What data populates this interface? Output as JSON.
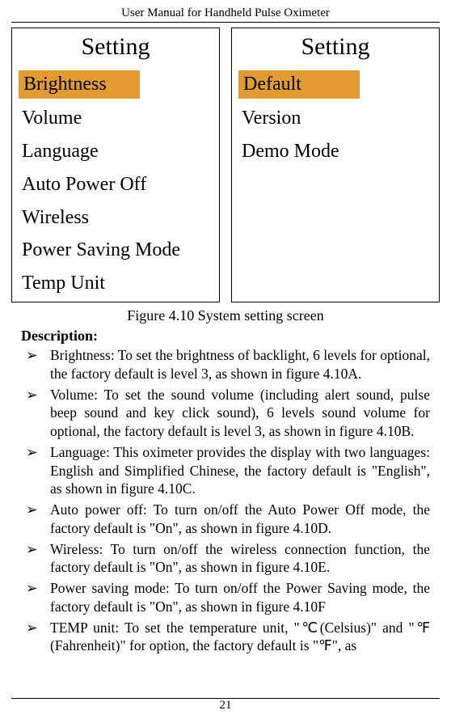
{
  "header": "User Manual for Handheld Pulse Oximeter",
  "panels": {
    "left": {
      "title": "Setting",
      "items": [
        {
          "label": "Brightness",
          "highlight": true
        },
        {
          "label": "Volume",
          "highlight": false
        },
        {
          "label": "Language",
          "highlight": false
        },
        {
          "label": "Auto Power Off",
          "highlight": false
        },
        {
          "label": "Wireless",
          "highlight": false
        },
        {
          "label": "Power Saving Mode",
          "highlight": false
        },
        {
          "label": "Temp Unit",
          "highlight": false
        }
      ]
    },
    "right": {
      "title": "Setting",
      "items": [
        {
          "label": "Default",
          "highlight": true
        },
        {
          "label": "Version",
          "highlight": false
        },
        {
          "label": "Demo Mode",
          "highlight": false
        }
      ]
    }
  },
  "figcap": "Figure 4.10 System setting screen",
  "desc_title": "Description:",
  "bullets": [
    "Brightness: To set the brightness of backlight, 6 levels for optional, the factory default is level 3, as shown in figure 4.10A.",
    "Volume: To set the sound volume (including alert sound, pulse beep sound and key click sound), 6 levels sound volume for optional, the factory default is level 3, as shown in figure 4.10B.",
    "Language: This oximeter provides the display with two languages: English and Simplified Chinese, the factory default is \"English\", as shown in figure 4.10C.",
    "Auto power off: To turn on/off the Auto Power Off mode, the factory default is \"On\", as shown in figure 4.10D.",
    "Wireless: To turn on/off the wireless connection function, the factory default is \"On\", as shown in figure 4.10E.",
    "Power saving mode: To turn on/off the Power Saving mode, the factory default is \"On\", as shown in figure 4.10F",
    "TEMP unit: To set the temperature unit, \"℃(Celsius)\" and \"℉(Fahrenheit)\" for option, the factory default is \"℉\", as"
  ],
  "page_number": "21",
  "bullet_marker": "➢",
  "colors": {
    "highlight_bg": "#e29a33"
  }
}
